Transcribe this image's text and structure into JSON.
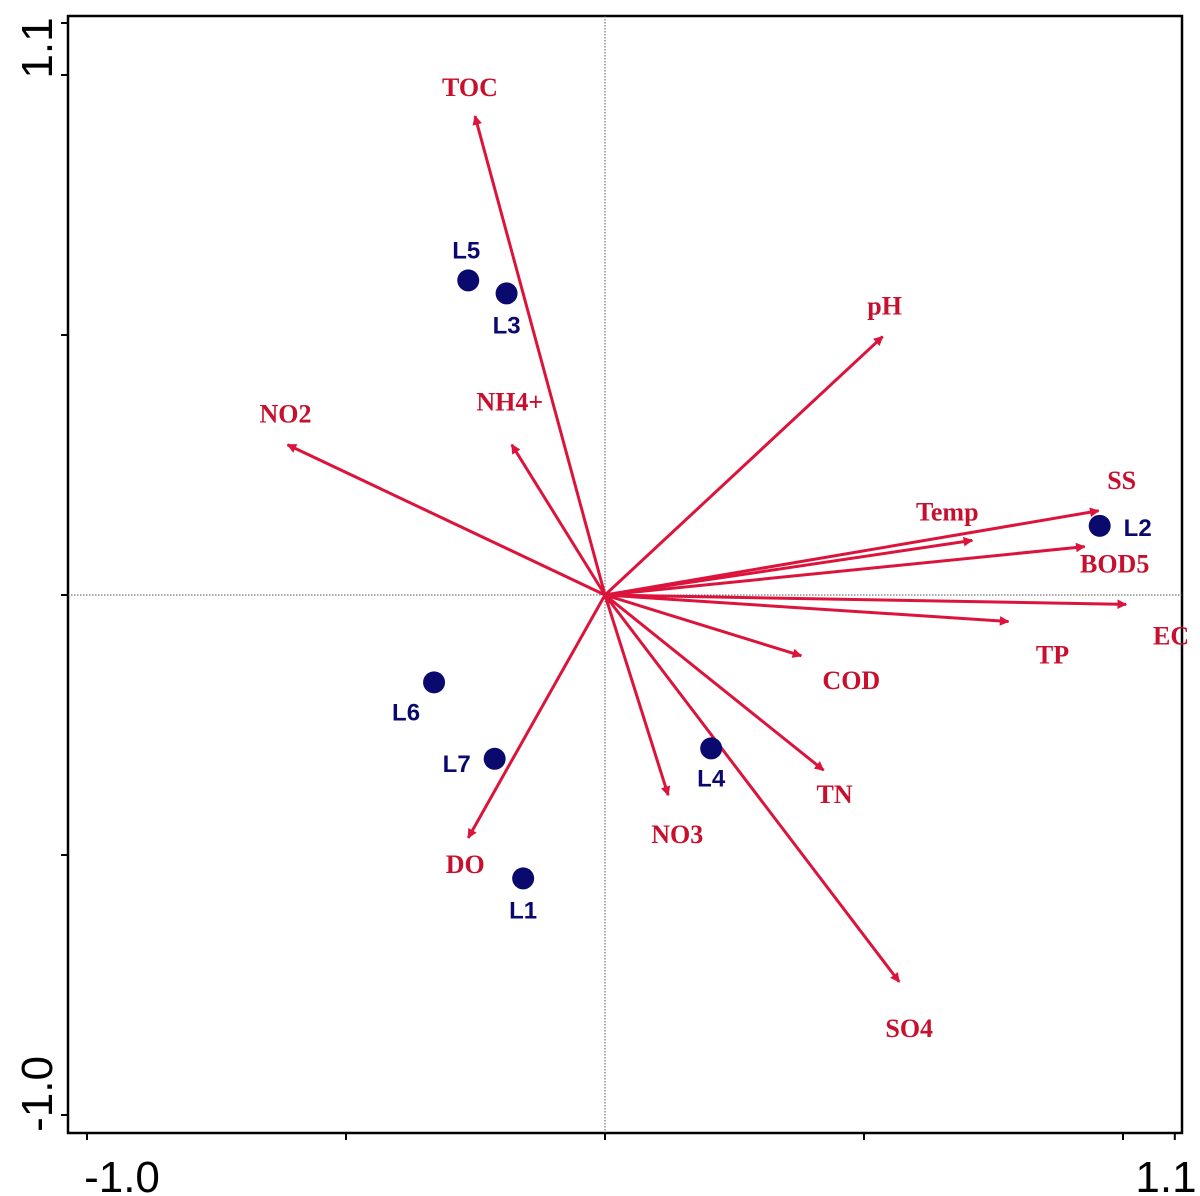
{
  "chart_data": {
    "type": "scatter",
    "subtype": "RDA biplot",
    "title": "",
    "xlabel": "",
    "ylabel": "",
    "xlim": [
      -1.0,
      1.1
    ],
    "ylim": [
      -1.0,
      1.1
    ],
    "x_tick_labels": [
      "-1.0",
      "1.1"
    ],
    "y_tick_labels": [
      "1.1",
      "-1.0"
    ],
    "x_minor_ticks": [
      -1.0,
      -0.5,
      0.0,
      0.5,
      1.0
    ],
    "y_minor_ticks": [
      -1.0,
      -0.5,
      0.0,
      0.5,
      1.0
    ],
    "reference_lines": {
      "x": 0,
      "y": 0,
      "style": "dotted"
    },
    "vector_color": "#dc143c",
    "site_color": "#0a0a6e",
    "vectors": [
      {
        "name": "TOC",
        "x": -0.251,
        "y": 0.921
      },
      {
        "name": "pH",
        "x": 0.536,
        "y": 0.497
      },
      {
        "name": "NO2",
        "x": -0.613,
        "y": 0.289
      },
      {
        "name": "NH4+",
        "x": -0.18,
        "y": 0.289
      },
      {
        "name": "SS",
        "x": 0.953,
        "y": 0.162
      },
      {
        "name": "Temp",
        "x": 0.709,
        "y": 0.105
      },
      {
        "name": "BOD5",
        "x": 0.926,
        "y": 0.093
      },
      {
        "name": "EC",
        "x": 1.006,
        "y": -0.018
      },
      {
        "name": "TP",
        "x": 0.779,
        "y": -0.051
      },
      {
        "name": "COD",
        "x": 0.379,
        "y": -0.117
      },
      {
        "name": "TN",
        "x": 0.422,
        "y": -0.337
      },
      {
        "name": "NO3",
        "x": 0.122,
        "y": -0.385
      },
      {
        "name": "SO4",
        "x": 0.568,
        "y": -0.744
      },
      {
        "name": "DO",
        "x": -0.264,
        "y": -0.467
      }
    ],
    "sites": [
      {
        "name": "L1",
        "x": -0.158,
        "y": -0.545
      },
      {
        "name": "L2",
        "x": 0.955,
        "y": 0.133
      },
      {
        "name": "L3",
        "x": -0.19,
        "y": 0.58
      },
      {
        "name": "L4",
        "x": 0.205,
        "y": -0.295
      },
      {
        "name": "L5",
        "x": -0.264,
        "y": 0.605
      },
      {
        "name": "L6",
        "x": -0.33,
        "y": -0.168
      },
      {
        "name": "L7",
        "x": -0.213,
        "y": -0.315
      }
    ]
  }
}
